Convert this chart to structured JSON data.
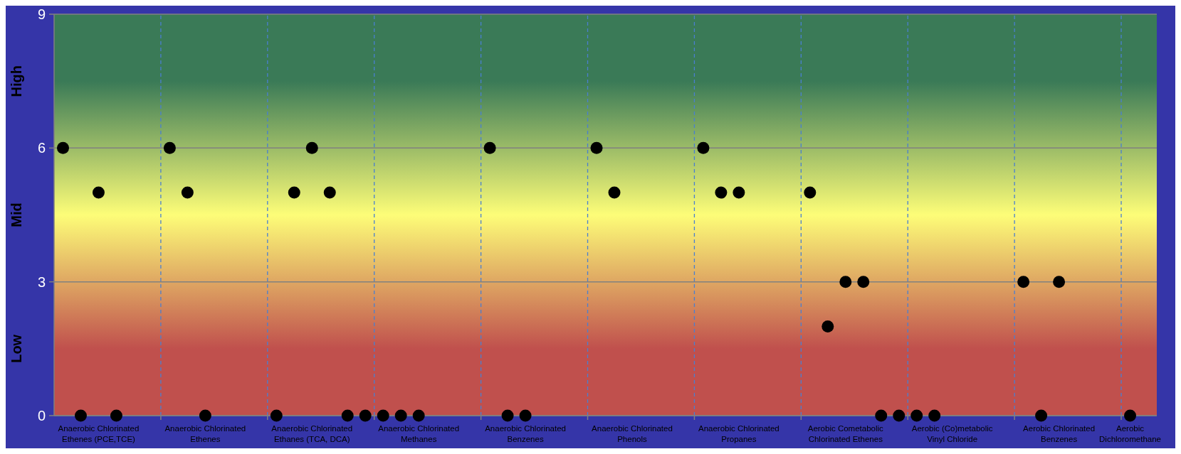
{
  "chart_data": {
    "type": "scatter",
    "categories": [
      null,
      null,
      "Anaerobic Chlorinated Ethenes (PCE,TCE)",
      null,
      null,
      null,
      null,
      null,
      "Anaerobic Chlorinated Ethenes",
      null,
      null,
      null,
      null,
      null,
      "Anaerobic Chlorinated Ethanes (TCA, DCA)",
      null,
      null,
      null,
      null,
      null,
      "Anaerobic Chlorinated Methanes",
      null,
      null,
      null,
      null,
      null,
      "Anaerobic Chlorinated Benzenes",
      null,
      null,
      null,
      null,
      null,
      "Anaerobic Chlorinated Phenols",
      null,
      null,
      null,
      null,
      null,
      "Anaerobic Chlorinated Propanes",
      null,
      null,
      null,
      null,
      null,
      "Aerobic Cometabolic Chlorinated Ethenes",
      null,
      null,
      null,
      null,
      null,
      "Aerobic (Co)metabolic Vinyl Chloride",
      null,
      null,
      null,
      null,
      null,
      "Aerobic Chlorinated Benzenes",
      null,
      null,
      null,
      "Aerobic Dichloromethane",
      null
    ],
    "values": [
      6,
      0,
      5,
      0,
      null,
      null,
      6,
      5,
      0,
      null,
      null,
      null,
      0,
      5,
      6,
      5,
      0,
      0,
      0,
      0,
      0,
      null,
      null,
      null,
      6,
      0,
      0,
      null,
      null,
      null,
      6,
      5,
      null,
      null,
      null,
      null,
      6,
      5,
      5,
      null,
      null,
      null,
      5,
      2,
      3,
      3,
      0,
      0,
      0,
      0,
      null,
      null,
      null,
      null,
      3,
      0,
      3,
      null,
      null,
      null,
      0,
      null
    ],
    "color": "#000000",
    "marker": "circle",
    "ylim": [
      0,
      9
    ],
    "yticks": [
      0,
      3,
      6,
      9
    ],
    "grid": true,
    "bands": [
      {
        "axis": "y",
        "from": 0,
        "to": 3,
        "label": "Low",
        "color": "#c0504d"
      },
      {
        "axis": "y",
        "from": 3,
        "to": 6,
        "label": "Mid",
        "color": "#fdfd78"
      },
      {
        "axis": "y",
        "from": 6,
        "to": 9,
        "label": "High",
        "color": "#3a7a57"
      }
    ]
  }
}
